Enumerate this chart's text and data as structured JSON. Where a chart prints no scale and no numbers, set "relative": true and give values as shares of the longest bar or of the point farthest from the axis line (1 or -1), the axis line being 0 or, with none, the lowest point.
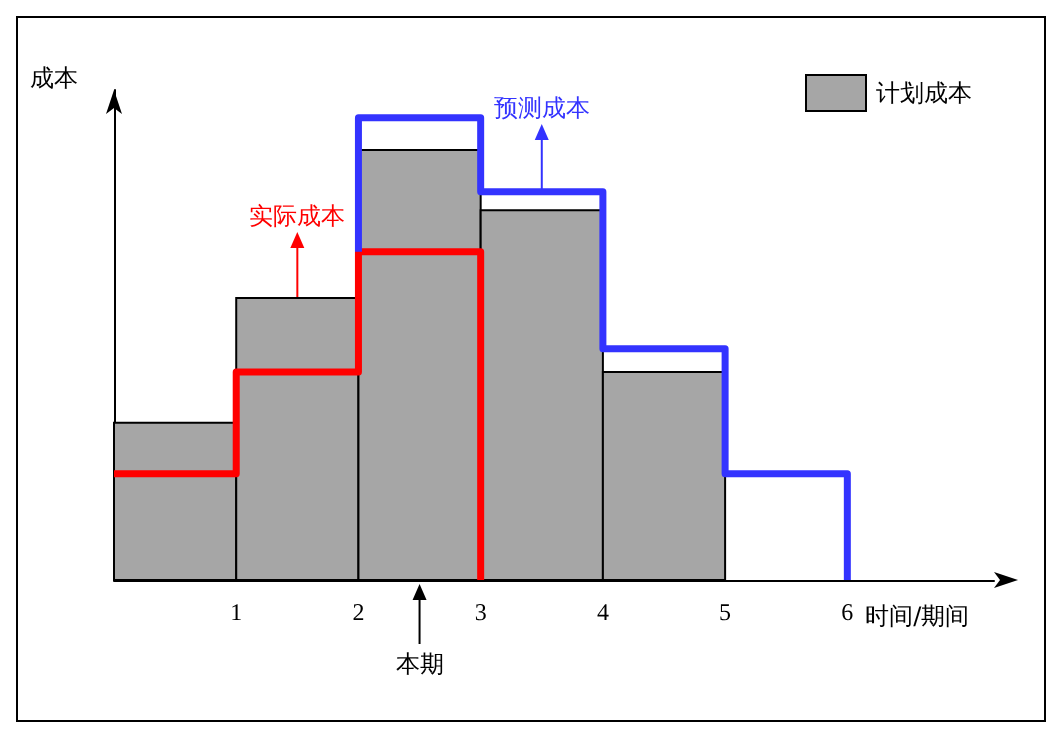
{
  "chart_data": {
    "type": "histogram",
    "relative": true,
    "xlabel": "时间/期间",
    "ylabel": "成本",
    "xlim": [
      0,
      7.2
    ],
    "xticks": [
      1,
      2,
      3,
      4,
      5,
      6
    ],
    "legend": "top right",
    "grid": false,
    "series": [
      {
        "name": "计划成本",
        "color": "#a6a6a6",
        "bins": [
          0,
          1,
          2,
          3,
          4,
          5
        ],
        "values": [
          0.34,
          0.61,
          0.93,
          0.8,
          0.45
        ]
      },
      {
        "type": "step",
        "color": "#ff0000",
        "x": [
          0,
          1,
          2,
          3
        ],
        "values": [
          0.23,
          0.45,
          0.71,
          0
        ]
      },
      {
        "type": "step",
        "color": "#3333ff",
        "x": [
          2,
          2,
          3,
          4,
          5,
          6
        ],
        "values": [
          0.71,
          1.0,
          0.84,
          0.5,
          0.23,
          0
        ]
      }
    ],
    "annotations": [
      {
        "text": "实际成本",
        "x": 1.5,
        "y": 0.45
      },
      {
        "text": "预测成本",
        "x": 3.5,
        "y": 0.84
      },
      {
        "text": "本期",
        "x": 2.5,
        "y": 0
      }
    ]
  }
}
